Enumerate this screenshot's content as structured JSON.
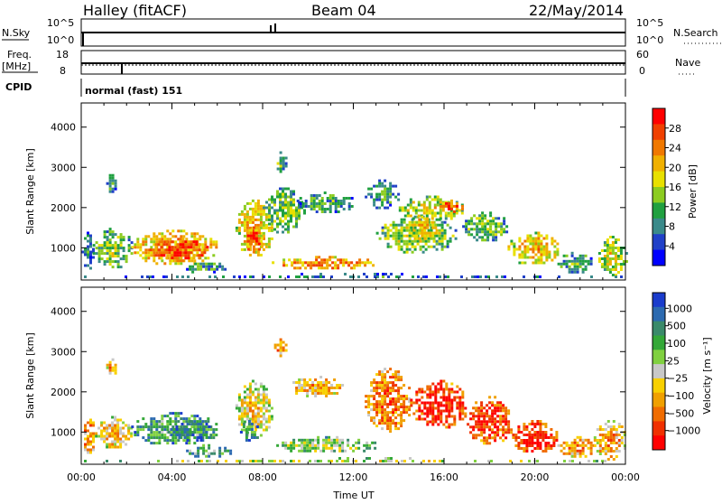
{
  "header": {
    "station": "Halley (fitACF)",
    "beam": "Beam 04",
    "date": "22/May/2014"
  },
  "strips": {
    "nsky_label": "N.Sky",
    "nsky_ticks": [
      "10^5",
      "10^0"
    ],
    "nsearch_label": "N.Search",
    "nsearch_ticks": [
      "10^5",
      "10^0"
    ],
    "freq_label": "Freq.",
    "freq_unit": "[MHz]",
    "freq_ticks": [
      "18",
      "8"
    ],
    "nave_label": "Nave",
    "nave_ticks": [
      "60",
      "0"
    ],
    "cpid_label": "CPID",
    "cpid_value": "normal (fast) 151"
  },
  "chart_data": [
    {
      "type": "heatmap",
      "name": "power",
      "ylabel": "Slant Range [km]",
      "yticks": [
        1000,
        2000,
        3000,
        4000
      ],
      "ylim": [
        200,
        4600
      ],
      "xlim": [
        0,
        24
      ],
      "colorbar": {
        "label": "Power [dB]",
        "ticks": [
          4,
          8,
          12,
          16,
          20,
          24,
          28
        ],
        "range": [
          0,
          32
        ],
        "colors": [
          "#0000ff",
          "#2040c8",
          "#3a8a8a",
          "#20a040",
          "#8ccc20",
          "#e8e000",
          "#f0b000",
          "#f07800",
          "#f04000",
          "#ff0000"
        ]
      },
      "regions": [
        {
          "t0": 0.0,
          "t1": 0.5,
          "r0": 400,
          "r1": 1400,
          "level": 0.3
        },
        {
          "t0": 0.5,
          "t1": 2.2,
          "r0": 500,
          "r1": 1500,
          "level": 0.45
        },
        {
          "t0": 1.1,
          "t1": 1.5,
          "r0": 2400,
          "r1": 2900,
          "level": 0.4
        },
        {
          "t0": 2.2,
          "t1": 6.0,
          "r0": 600,
          "r1": 1450,
          "level": 0.7
        },
        {
          "t0": 3.0,
          "t1": 5.6,
          "r0": 700,
          "r1": 1250,
          "level": 0.9
        },
        {
          "t0": 4.5,
          "t1": 6.4,
          "r0": 400,
          "r1": 700,
          "level": 0.35
        },
        {
          "t0": 6.8,
          "t1": 8.4,
          "r0": 800,
          "r1": 2200,
          "level": 0.65
        },
        {
          "t0": 7.2,
          "t1": 8.0,
          "r0": 900,
          "r1": 1600,
          "level": 0.85
        },
        {
          "t0": 8.5,
          "t1": 9.0,
          "r0": 2900,
          "r1": 3400,
          "level": 0.4
        },
        {
          "t0": 8.0,
          "t1": 9.8,
          "r0": 1400,
          "r1": 2500,
          "level": 0.45
        },
        {
          "t0": 8.4,
          "t1": 13.0,
          "r0": 500,
          "r1": 800,
          "level": 0.75
        },
        {
          "t0": 9.5,
          "t1": 12.0,
          "r0": 1900,
          "r1": 2400,
          "level": 0.35
        },
        {
          "t0": 12.5,
          "t1": 14.0,
          "r0": 2000,
          "r1": 2700,
          "level": 0.35
        },
        {
          "t0": 13.0,
          "t1": 16.5,
          "r0": 900,
          "r1": 1800,
          "level": 0.5
        },
        {
          "t0": 14.0,
          "t1": 16.8,
          "r0": 1700,
          "r1": 2300,
          "level": 0.55
        },
        {
          "t0": 15.8,
          "t1": 16.8,
          "r0": 1900,
          "r1": 2200,
          "level": 0.85
        },
        {
          "t0": 14.5,
          "t1": 15.6,
          "r0": 1200,
          "r1": 1800,
          "level": 0.65
        },
        {
          "t0": 16.8,
          "t1": 18.8,
          "r0": 1200,
          "r1": 1900,
          "level": 0.45
        },
        {
          "t0": 18.8,
          "t1": 21.0,
          "r0": 600,
          "r1": 1400,
          "level": 0.65
        },
        {
          "t0": 21.0,
          "t1": 22.5,
          "r0": 400,
          "r1": 900,
          "level": 0.4
        },
        {
          "t0": 22.8,
          "t1": 24.0,
          "r0": 300,
          "r1": 1300,
          "level": 0.55
        },
        {
          "t0": 0.0,
          "t1": 24.0,
          "r0": 250,
          "r1": 380,
          "level": 0.25
        }
      ]
    },
    {
      "type": "heatmap",
      "name": "velocity",
      "ylabel": "Slant Range [km]",
      "xlabel": "Time UT",
      "yticks": [
        1000,
        2000,
        3000,
        4000
      ],
      "xticks": [
        "00:00",
        "04:00",
        "08:00",
        "12:00",
        "16:00",
        "20:00",
        "00:00"
      ],
      "ylim": [
        200,
        4600
      ],
      "xlim": [
        0,
        24
      ],
      "colorbar": {
        "label": "Velocity [m s⁻¹]",
        "ticks": [
          "1000",
          "500",
          "100",
          "25",
          "−25",
          "−100",
          "−500",
          "−1000"
        ],
        "colors": [
          "#1a3ccc",
          "#2c6ab0",
          "#3a8a6a",
          "#34a838",
          "#80d040",
          "#c8c8c8",
          "#f8d000",
          "#f0a000",
          "#f06c00",
          "#f03000",
          "#ff0000"
        ]
      },
      "regions": [
        {
          "t0": 0.0,
          "t1": 0.6,
          "r0": 500,
          "r1": 1400,
          "level": 0.75
        },
        {
          "t0": 0.6,
          "t1": 2.2,
          "r0": 600,
          "r1": 1400,
          "level": 0.65
        },
        {
          "t0": 1.1,
          "t1": 1.5,
          "r0": 2400,
          "r1": 2900,
          "level": 0.7
        },
        {
          "t0": 2.2,
          "t1": 6.0,
          "r0": 700,
          "r1": 1500,
          "level": 0.35
        },
        {
          "t0": 3.8,
          "t1": 5.8,
          "r0": 800,
          "r1": 1300,
          "level": 0.25
        },
        {
          "t0": 4.5,
          "t1": 6.6,
          "r0": 400,
          "r1": 700,
          "level": 0.4
        },
        {
          "t0": 6.8,
          "t1": 8.4,
          "r0": 900,
          "r1": 2300,
          "level": 0.6
        },
        {
          "t0": 7.0,
          "t1": 7.8,
          "r0": 800,
          "r1": 1300,
          "level": 0.3
        },
        {
          "t0": 8.5,
          "t1": 9.0,
          "r0": 2900,
          "r1": 3400,
          "level": 0.75
        },
        {
          "t0": 8.6,
          "t1": 13.0,
          "r0": 500,
          "r1": 900,
          "level": 0.5
        },
        {
          "t0": 9.2,
          "t1": 11.5,
          "r0": 1900,
          "r1": 2400,
          "level": 0.7
        },
        {
          "t0": 12.5,
          "t1": 14.5,
          "r0": 1000,
          "r1": 2600,
          "level": 0.8
        },
        {
          "t0": 14.5,
          "t1": 17.0,
          "r0": 1100,
          "r1": 2300,
          "level": 0.95
        },
        {
          "t0": 17.0,
          "t1": 19.0,
          "r0": 700,
          "r1": 1900,
          "level": 0.9
        },
        {
          "t0": 19.0,
          "t1": 21.0,
          "r0": 500,
          "r1": 1300,
          "level": 0.95
        },
        {
          "t0": 21.0,
          "t1": 22.6,
          "r0": 400,
          "r1": 900,
          "level": 0.75
        },
        {
          "t0": 22.6,
          "t1": 24.0,
          "r0": 300,
          "r1": 1300,
          "level": 0.7
        },
        {
          "t0": 0.0,
          "t1": 24.0,
          "r0": 250,
          "r1": 380,
          "level": 0.5
        }
      ]
    }
  ]
}
